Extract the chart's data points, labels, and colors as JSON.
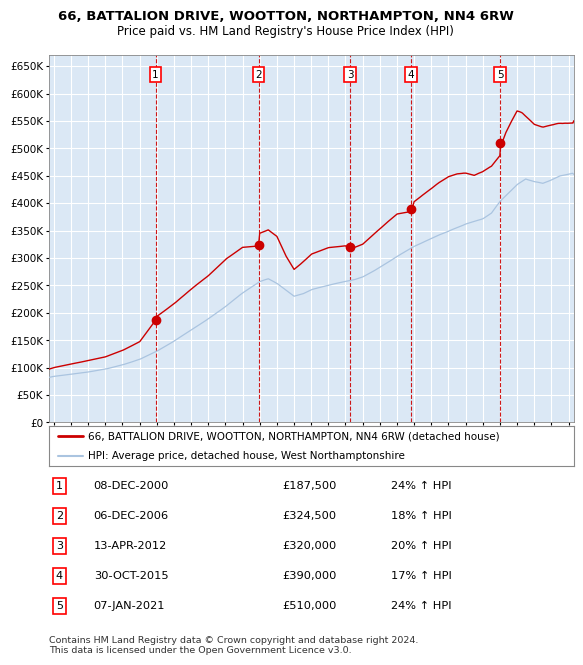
{
  "title": "66, BATTALION DRIVE, WOOTTON, NORTHAMPTON, NN4 6RW",
  "subtitle": "Price paid vs. HM Land Registry's House Price Index (HPI)",
  "legend_line1": "66, BATTALION DRIVE, WOOTTON, NORTHAMPTON, NN4 6RW (detached house)",
  "legend_line2": "HPI: Average price, detached house, West Northamptonshire",
  "footer": "Contains HM Land Registry data © Crown copyright and database right 2024.\nThis data is licensed under the Open Government Licence v3.0.",
  "transactions": [
    {
      "num": 1,
      "date": "08-DEC-2000",
      "price": 187500,
      "pct": "24%",
      "year": 2000.93
    },
    {
      "num": 2,
      "date": "06-DEC-2006",
      "price": 324500,
      "pct": "18%",
      "year": 2006.93
    },
    {
      "num": 3,
      "date": "13-APR-2012",
      "price": 320000,
      "pct": "20%",
      "year": 2012.28
    },
    {
      "num": 4,
      "date": "30-OCT-2015",
      "price": 390000,
      "pct": "17%",
      "year": 2015.83
    },
    {
      "num": 5,
      "date": "07-JAN-2021",
      "price": 510000,
      "pct": "24%",
      "year": 2021.02
    }
  ],
  "hpi_color": "#aac4e0",
  "price_color": "#cc0000",
  "background_color": "#dbe8f5",
  "grid_color": "#ffffff",
  "ylim": [
    0,
    670000
  ],
  "yticks": [
    0,
    50000,
    100000,
    150000,
    200000,
    250000,
    300000,
    350000,
    400000,
    450000,
    500000,
    550000,
    600000,
    650000
  ],
  "xlim_start": 1994.7,
  "xlim_end": 2025.3
}
